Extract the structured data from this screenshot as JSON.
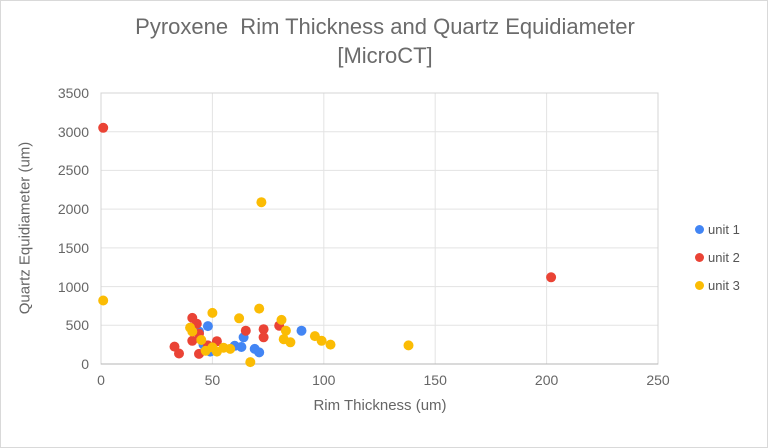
{
  "frame": {
    "background": "#ffffff",
    "border_color": "#d9d9d9"
  },
  "chart_data": {
    "type": "scatter",
    "title": "Pyroxene  Rim Thickness and Quartz Equidiameter",
    "subtitle": "[MicroCT]",
    "xlabel": "Rim Thickness (um)",
    "ylabel": "Quartz Equidiameter (um)",
    "xlim": [
      0,
      250
    ],
    "ylim": [
      0,
      3500
    ],
    "x_ticks": [
      0,
      50,
      100,
      150,
      200,
      250
    ],
    "y_ticks": [
      0,
      500,
      1000,
      1500,
      2000,
      2500,
      3000,
      3500
    ],
    "grid": true,
    "legend_position": "right",
    "title_color": "#6b6b6b",
    "axis_text_color": "#666666",
    "gridline_color": "#e3e3e3",
    "plot_border_color": "#d4d4d4",
    "axis_line_color": "#b5b5b5",
    "point_radius": 5,
    "series": [
      {
        "name": "unit 1",
        "color": "#4285F4",
        "points": [
          [
            44,
            420
          ],
          [
            48,
            490
          ],
          [
            46,
            250
          ],
          [
            49,
            160
          ],
          [
            60,
            235
          ],
          [
            63,
            220
          ],
          [
            64,
            345
          ],
          [
            69,
            195
          ],
          [
            71,
            150
          ],
          [
            90,
            430
          ]
        ]
      },
      {
        "name": "unit 2",
        "color": "#EA4335",
        "points": [
          [
            1,
            3050
          ],
          [
            33,
            225
          ],
          [
            35,
            135
          ],
          [
            41,
            595
          ],
          [
            43,
            520
          ],
          [
            44,
            390
          ],
          [
            41,
            300
          ],
          [
            44,
            130
          ],
          [
            48,
            240
          ],
          [
            52,
            295
          ],
          [
            65,
            430
          ],
          [
            73,
            450
          ],
          [
            73,
            345
          ],
          [
            80,
            495
          ],
          [
            202,
            1120
          ]
        ]
      },
      {
        "name": "unit 3",
        "color": "#FBBC04",
        "points": [
          [
            1,
            820
          ],
          [
            40,
            470
          ],
          [
            41,
            420
          ],
          [
            45,
            310
          ],
          [
            47,
            170
          ],
          [
            50,
            660
          ],
          [
            50,
            215
          ],
          [
            52,
            160
          ],
          [
            55,
            210
          ],
          [
            58,
            195
          ],
          [
            62,
            590
          ],
          [
            67,
            25
          ],
          [
            71,
            715
          ],
          [
            72,
            2090
          ],
          [
            81,
            570
          ],
          [
            83,
            430
          ],
          [
            82,
            320
          ],
          [
            85,
            280
          ],
          [
            96,
            360
          ],
          [
            99,
            300
          ],
          [
            103,
            250
          ],
          [
            138,
            240
          ]
        ]
      }
    ]
  }
}
